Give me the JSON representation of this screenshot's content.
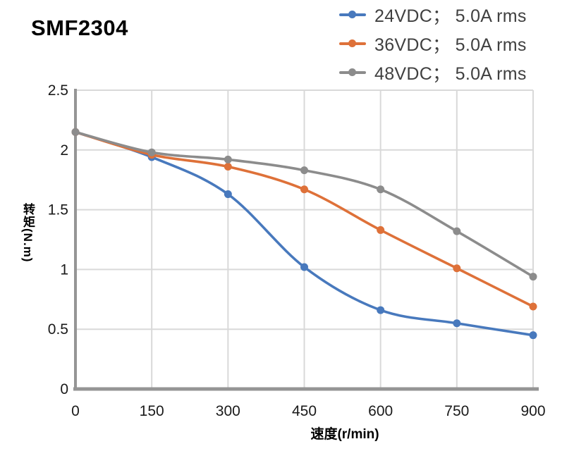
{
  "title": "SMF2304",
  "chart_data": {
    "type": "line",
    "title": "SMF2304",
    "x": [
      0,
      150,
      300,
      450,
      600,
      750,
      900
    ],
    "series": [
      {
        "name": "24VDC； 5.0A rms",
        "color": "#4879BD",
        "values": [
          2.15,
          1.94,
          1.63,
          1.02,
          0.66,
          0.55,
          0.45
        ]
      },
      {
        "name": "36VDC； 5.0A rms",
        "color": "#DE7139",
        "values": [
          2.15,
          1.96,
          1.86,
          1.67,
          1.33,
          1.01,
          0.69
        ]
      },
      {
        "name": "48VDC； 5.0A rms",
        "color": "#8C8C8C",
        "values": [
          2.15,
          1.98,
          1.92,
          1.83,
          1.67,
          1.32,
          0.94
        ]
      }
    ],
    "xlabel": "速度(r/min)",
    "ylabel": "转矩(N.m)",
    "xlim": [
      0,
      900
    ],
    "ylim": [
      0,
      2.5
    ],
    "x_ticks": {
      "values": [
        0,
        150,
        300,
        450,
        600,
        750,
        900
      ],
      "labels": [
        "0",
        "150",
        "300",
        "450",
        "600",
        "750",
        "900"
      ]
    },
    "y_ticks": {
      "values": [
        0,
        0.5,
        1,
        1.5,
        2,
        2.5
      ],
      "labels": [
        "0",
        "0.5",
        "1",
        "1.5",
        "2",
        "2.5"
      ]
    },
    "grid": true,
    "legend_position": "top-right",
    "smooth_lines": true,
    "colors": {
      "grid": "#D9D9D9",
      "axis": "#959595",
      "text": "#1A1A1A"
    }
  }
}
